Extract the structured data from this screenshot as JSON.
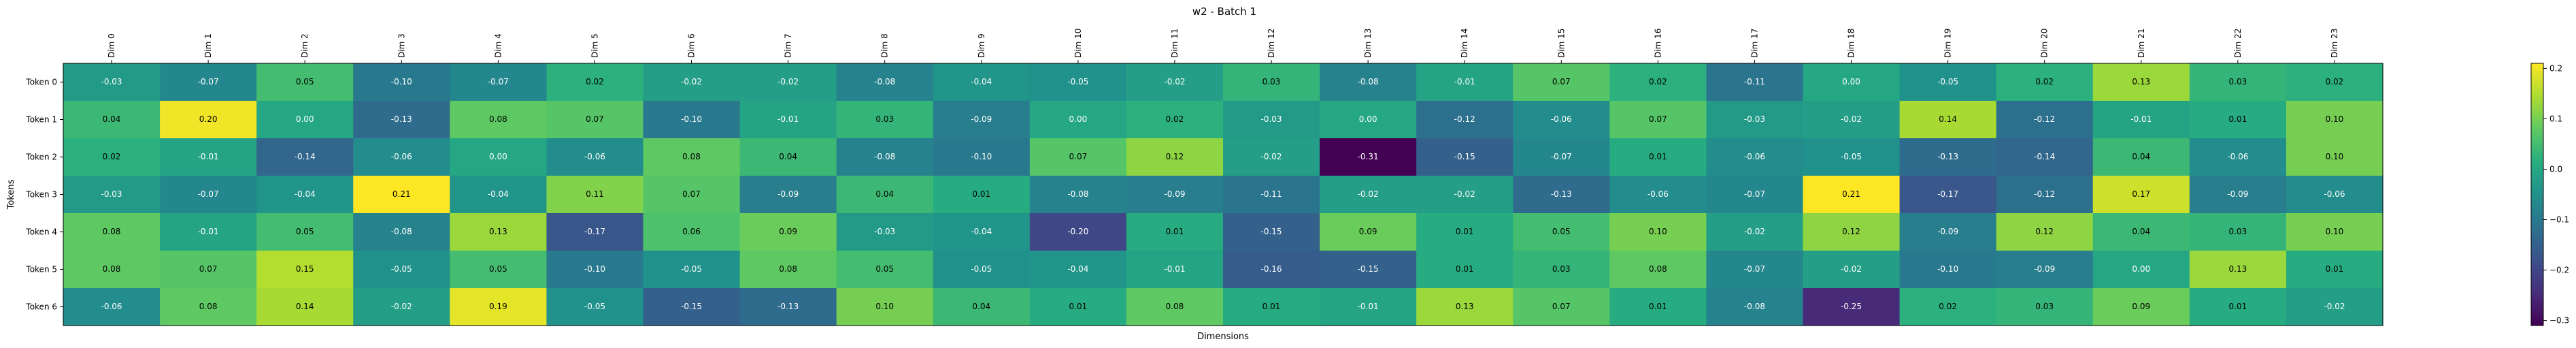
{
  "chart_data": {
    "type": "heatmap",
    "title": "w2 - Batch 1",
    "xlabel": "Dimensions",
    "ylabel": "Tokens",
    "x_categories": [
      "Dim 0",
      "Dim 1",
      "Dim 2",
      "Dim 3",
      "Dim 4",
      "Dim 5",
      "Dim 6",
      "Dim 7",
      "Dim 8",
      "Dim 9",
      "Dim 10",
      "Dim 11",
      "Dim 12",
      "Dim 13",
      "Dim 14",
      "Dim 15",
      "Dim 16",
      "Dim 17",
      "Dim 18",
      "Dim 19",
      "Dim 20",
      "Dim 21",
      "Dim 22",
      "Dim 23"
    ],
    "y_categories": [
      "Token 0",
      "Token 1",
      "Token 2",
      "Token 3",
      "Token 4",
      "Token 5",
      "Token 6"
    ],
    "values": [
      [
        -0.03,
        -0.07,
        0.05,
        -0.1,
        -0.07,
        0.02,
        -0.02,
        -0.02,
        -0.08,
        -0.04,
        -0.05,
        -0.02,
        0.03,
        -0.08,
        -0.01,
        0.07,
        0.02,
        -0.11,
        -0.0,
        -0.05,
        0.02,
        0.13,
        0.03,
        0.02
      ],
      [
        0.04,
        0.2,
        -0.0,
        -0.13,
        0.08,
        0.07,
        -0.1,
        -0.01,
        0.03,
        -0.09,
        -0.0,
        0.02,
        -0.03,
        0.0,
        -0.12,
        -0.06,
        0.07,
        -0.03,
        -0.02,
        0.14,
        -0.12,
        -0.01,
        0.01,
        0.1
      ],
      [
        0.02,
        -0.01,
        -0.14,
        -0.06,
        -0.0,
        -0.06,
        0.08,
        0.04,
        -0.08,
        -0.1,
        0.07,
        0.12,
        -0.02,
        -0.31,
        -0.15,
        -0.07,
        0.01,
        -0.06,
        -0.05,
        -0.13,
        -0.14,
        0.04,
        -0.06,
        0.1
      ],
      [
        -0.03,
        -0.07,
        -0.04,
        0.21,
        -0.04,
        0.11,
        0.07,
        -0.09,
        0.04,
        0.01,
        -0.08,
        -0.09,
        -0.11,
        -0.02,
        -0.02,
        -0.13,
        -0.06,
        -0.07,
        0.21,
        -0.17,
        -0.12,
        0.17,
        -0.09,
        -0.06
      ],
      [
        0.08,
        -0.01,
        0.05,
        -0.08,
        0.13,
        -0.17,
        0.06,
        0.09,
        -0.03,
        -0.04,
        -0.2,
        0.01,
        -0.15,
        0.09,
        0.01,
        0.05,
        0.1,
        -0.02,
        0.12,
        -0.09,
        0.12,
        0.04,
        0.03,
        0.1
      ],
      [
        0.08,
        0.07,
        0.15,
        -0.05,
        0.05,
        -0.1,
        -0.05,
        0.08,
        0.05,
        -0.05,
        -0.04,
        -0.01,
        -0.16,
        -0.15,
        0.01,
        0.03,
        0.08,
        -0.07,
        -0.02,
        -0.1,
        -0.09,
        -0.0,
        0.13,
        0.01
      ],
      [
        -0.06,
        0.08,
        0.14,
        -0.02,
        0.19,
        -0.05,
        -0.15,
        -0.13,
        0.1,
        0.04,
        0.01,
        0.08,
        0.01,
        -0.01,
        0.13,
        0.07,
        0.01,
        -0.08,
        -0.25,
        0.02,
        0.03,
        0.09,
        0.01,
        -0.02
      ]
    ],
    "colormap": "viridis",
    "vmin": -0.31,
    "vmax": 0.21,
    "colorbar_ticks": [
      -0.3,
      -0.2,
      -0.1,
      0.0,
      0.1,
      0.2
    ],
    "colorbar_tick_labels": [
      "−0.3",
      "−0.2",
      "−0.1",
      "0.0",
      "0.1",
      "0.2"
    ],
    "grid": false,
    "legend": "colorbar-right"
  }
}
